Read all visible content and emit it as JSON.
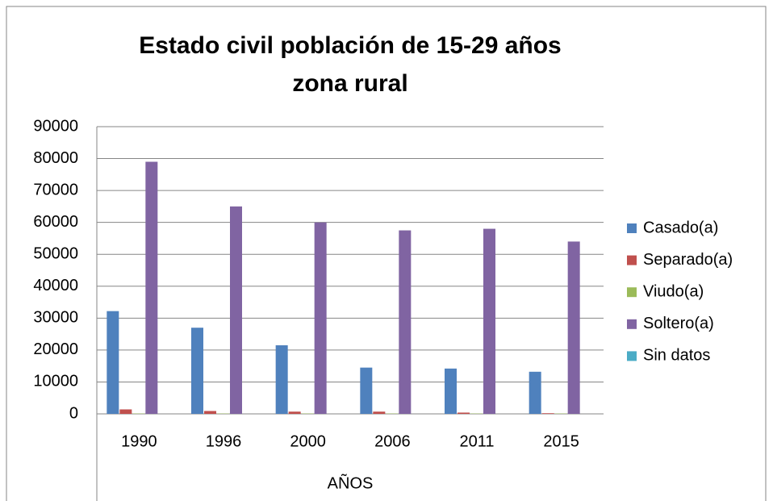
{
  "chart_data": {
    "type": "bar",
    "title": [
      "Estado civil población de 15-29 años",
      "zona rural"
    ],
    "x_label": "AÑOS",
    "categories": [
      "1990",
      "1996",
      "2000",
      "2006",
      "2011",
      "2015"
    ],
    "series": [
      {
        "name": "Casado(a)",
        "color": "#4f81bd",
        "values": [
          32200,
          27000,
          21500,
          14500,
          14200,
          13200
        ]
      },
      {
        "name": "Separado(a)",
        "color": "#c0504d",
        "values": [
          1400,
          900,
          700,
          700,
          400,
          200
        ]
      },
      {
        "name": "Viudo(a)",
        "color": "#9bbb59",
        "values": [
          100,
          100,
          100,
          100,
          100,
          100
        ]
      },
      {
        "name": "Soltero(a)",
        "color": "#8064a2",
        "values": [
          79000,
          65000,
          60000,
          57500,
          58000,
          54000
        ]
      },
      {
        "name": "Sin datos",
        "color": "#4bacc6",
        "values": [
          0,
          0,
          0,
          0,
          0,
          0
        ]
      }
    ],
    "ylim": [
      0,
      90000
    ],
    "yticks": [
      0,
      10000,
      20000,
      30000,
      40000,
      50000,
      60000,
      70000,
      80000,
      90000
    ],
    "grid": true,
    "legend": "right"
  }
}
